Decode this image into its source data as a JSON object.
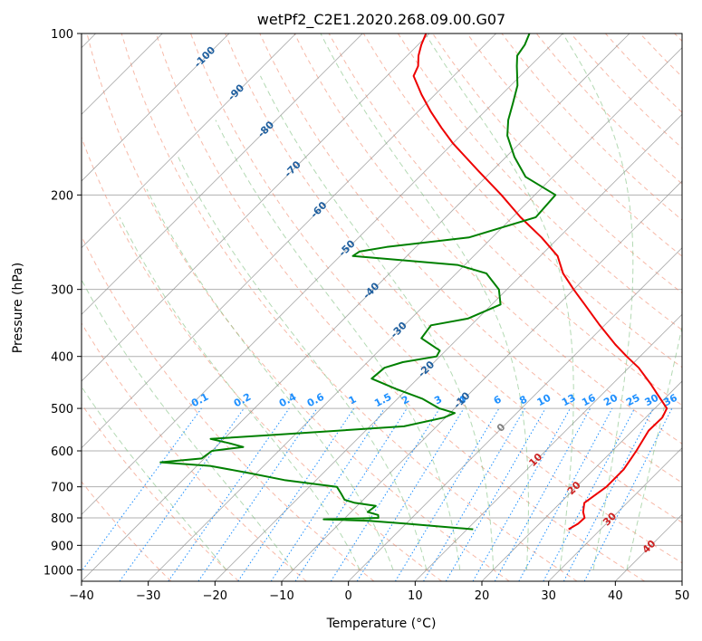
{
  "chart_data": {
    "type": "line",
    "title": "wetPf2_C2E1.2020.268.09.00.G07",
    "xlabel": "Temperature (°C)",
    "ylabel": "Pressure (hPa)",
    "xlim": [
      -40,
      50
    ],
    "ylim": [
      1050,
      100
    ],
    "y_scale": "log",
    "x_ticks": [
      "−40",
      "−30",
      "−20",
      "−10",
      "0",
      "10",
      "20",
      "30",
      "40",
      "50"
    ],
    "y_ticks": [
      "100",
      "200",
      "300",
      "400",
      "500",
      "600",
      "700",
      "800",
      "900",
      "1000"
    ],
    "grid": true,
    "colors": {
      "temperature": "#ee0000",
      "dewpoint": "#008000",
      "isotherm": "#1f5f9f",
      "mixing_ratio": "#1e90ff",
      "dry_adiabat": "#f08060",
      "moist_adiabat": "#80c080",
      "lcl_marker": "#808080",
      "red_labels": "#cc2222"
    },
    "isotherm_labels": [
      "-100",
      "-90",
      "-80",
      "-70",
      "-60",
      "-50",
      "-40",
      "-30",
      "-20",
      "-10",
      "0",
      "10",
      "20",
      "30",
      "40"
    ],
    "mixing_ratio_labels": [
      "0.1",
      "0.2",
      "0.4",
      "0.6",
      "1",
      "1.5",
      "2",
      "3",
      "4",
      "6",
      "8",
      "10",
      "13",
      "16",
      "20",
      "25",
      "30",
      "36"
    ],
    "series": [
      {
        "name": "Temperature",
        "p": [
          840,
          820,
          800,
          780,
          750,
          700,
          650,
          600,
          550,
          520,
          500,
          470,
          450,
          420,
          400,
          380,
          350,
          320,
          300,
          280,
          260,
          240,
          220,
          200,
          180,
          160,
          150,
          140,
          130,
          120,
          115,
          110,
          105,
          100
        ],
        "t": [
          25.2,
          25.8,
          25.9,
          24.8,
          23.6,
          24.5,
          24.5,
          23.6,
          22.4,
          22.5,
          21.8,
          18.2,
          15.7,
          11.5,
          8.0,
          4.5,
          -0.7,
          -6.1,
          -10.0,
          -14.0,
          -17.4,
          -22.6,
          -28.8,
          -35.0,
          -42.2,
          -50.1,
          -54.0,
          -58.0,
          -62.0,
          -66.0,
          -66.8,
          -68.3,
          -69.5,
          -70.5
        ]
      },
      {
        "name": "Dewpoint",
        "p": [
          840,
          820,
          810,
          805,
          800,
          790,
          780,
          760,
          750,
          740,
          720,
          700,
          680,
          660,
          640,
          630,
          620,
          600,
          590,
          580,
          570,
          560,
          540,
          520,
          510,
          500,
          480,
          460,
          440,
          420,
          410,
          400,
          390,
          370,
          350,
          340,
          320,
          300,
          280,
          270,
          260,
          255,
          250,
          240,
          220,
          200,
          185,
          170,
          155,
          145,
          135,
          125,
          115,
          110,
          105,
          100
        ],
        "t": [
          10.9,
          0.0,
          -6.0,
          -13.0,
          -5.0,
          -5.5,
          -7.5,
          -7.2,
          -10.8,
          -12.8,
          -14.3,
          -15.9,
          -24.8,
          -31.1,
          -38.0,
          -46.0,
          -40.4,
          -40.0,
          -35.9,
          -38.7,
          -42.0,
          -33.0,
          -14.9,
          -10.2,
          -9.3,
          -12.3,
          -16.2,
          -21.7,
          -26.9,
          -26.6,
          -24.7,
          -20.5,
          -20.9,
          -25.5,
          -26.0,
          -21.5,
          -18.7,
          -21.2,
          -25.5,
          -31.1,
          -48.1,
          -47.8,
          -44.4,
          -33.5,
          -26.5,
          -26.9,
          -34.1,
          -38.7,
          -43.0,
          -45.2,
          -47.0,
          -49.0,
          -52.0,
          -53.5,
          -54.0,
          -55.0
        ]
      }
    ],
    "annotations": [
      "0",
      "10",
      "20",
      "30",
      "40"
    ]
  }
}
